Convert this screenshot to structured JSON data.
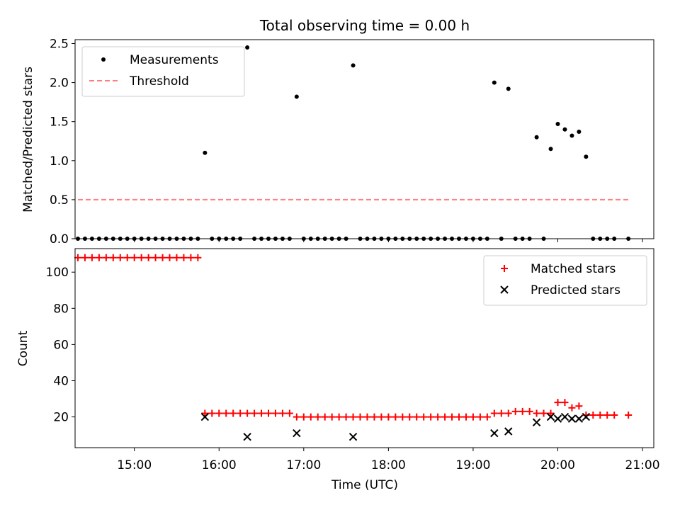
{
  "chart_data": [
    {
      "type": "scatter",
      "title": "Total observing time = 0.00 h",
      "xlabel": "",
      "ylabel": "Matched/Predicted stars",
      "xlim": [
        "14:18",
        "21:08"
      ],
      "ylim": [
        0,
        2.55
      ],
      "yticks": [
        0.0,
        0.5,
        1.0,
        1.5,
        2.0,
        2.5
      ],
      "ytick_labels": [
        "0.0",
        "0.5",
        "1.0",
        "1.5",
        "2.0",
        "2.5"
      ],
      "legend": "top-left",
      "series": [
        {
          "name": "Measurements",
          "marker": "dot",
          "color": "#000000",
          "points": [
            [
              "14:20",
              0
            ],
            [
              "14:25",
              0
            ],
            [
              "14:30",
              0
            ],
            [
              "14:35",
              0
            ],
            [
              "14:40",
              0
            ],
            [
              "14:45",
              0
            ],
            [
              "14:50",
              0
            ],
            [
              "14:55",
              0
            ],
            [
              "15:00",
              0
            ],
            [
              "15:05",
              0
            ],
            [
              "15:10",
              0
            ],
            [
              "15:15",
              0
            ],
            [
              "15:20",
              0
            ],
            [
              "15:25",
              0
            ],
            [
              "15:30",
              0
            ],
            [
              "15:35",
              0
            ],
            [
              "15:40",
              0
            ],
            [
              "15:45",
              0
            ],
            [
              "15:50",
              1.1
            ],
            [
              "15:55",
              0
            ],
            [
              "16:00",
              0
            ],
            [
              "16:05",
              0
            ],
            [
              "16:10",
              0
            ],
            [
              "16:15",
              0
            ],
            [
              "16:20",
              2.45
            ],
            [
              "16:25",
              0
            ],
            [
              "16:30",
              0
            ],
            [
              "16:35",
              0
            ],
            [
              "16:40",
              0
            ],
            [
              "16:45",
              0
            ],
            [
              "16:50",
              0
            ],
            [
              "16:55",
              1.82
            ],
            [
              "17:00",
              0
            ],
            [
              "17:05",
              0
            ],
            [
              "17:10",
              0
            ],
            [
              "17:15",
              0
            ],
            [
              "17:20",
              0
            ],
            [
              "17:25",
              0
            ],
            [
              "17:30",
              0
            ],
            [
              "17:35",
              2.22
            ],
            [
              "17:40",
              0
            ],
            [
              "17:45",
              0
            ],
            [
              "17:50",
              0
            ],
            [
              "17:55",
              0
            ],
            [
              "18:00",
              0
            ],
            [
              "18:05",
              0
            ],
            [
              "18:10",
              0
            ],
            [
              "18:15",
              0
            ],
            [
              "18:20",
              0
            ],
            [
              "18:25",
              0
            ],
            [
              "18:30",
              0
            ],
            [
              "18:35",
              0
            ],
            [
              "18:40",
              0
            ],
            [
              "18:45",
              0
            ],
            [
              "18:50",
              0
            ],
            [
              "18:55",
              0
            ],
            [
              "19:00",
              0
            ],
            [
              "19:05",
              0
            ],
            [
              "19:10",
              0
            ],
            [
              "19:15",
              2.0
            ],
            [
              "19:20",
              0
            ],
            [
              "19:25",
              1.92
            ],
            [
              "19:30",
              0
            ],
            [
              "19:35",
              0
            ],
            [
              "19:40",
              0
            ],
            [
              "19:45",
              1.3
            ],
            [
              "19:50",
              0
            ],
            [
              "19:55",
              1.15
            ],
            [
              "20:00",
              1.47
            ],
            [
              "20:05",
              1.4
            ],
            [
              "20:10",
              1.32
            ],
            [
              "20:15",
              1.37
            ],
            [
              "20:20",
              1.05
            ],
            [
              "20:25",
              0
            ],
            [
              "20:30",
              0
            ],
            [
              "20:35",
              0
            ],
            [
              "20:40",
              0
            ],
            [
              "20:50",
              0
            ]
          ]
        },
        {
          "name": "Threshold",
          "marker": "dashed-line",
          "color": "#ff7f7f",
          "points": [
            [
              "14:20",
              0.5
            ],
            [
              "20:50",
              0.5
            ]
          ]
        }
      ]
    },
    {
      "type": "scatter",
      "title": "",
      "xlabel": "Time (UTC)",
      "ylabel": "Count",
      "xlim": [
        "14:18",
        "21:08"
      ],
      "ylim": [
        3,
        113
      ],
      "yticks": [
        20,
        40,
        60,
        80,
        100
      ],
      "ytick_labels": [
        "20",
        "40",
        "60",
        "80",
        "100"
      ],
      "xticks": [
        "15:00",
        "16:00",
        "17:00",
        "18:00",
        "19:00",
        "20:00",
        "21:00"
      ],
      "legend": "top-right",
      "series": [
        {
          "name": "Matched stars",
          "marker": "plus",
          "color": "#ff0000",
          "points": [
            [
              "14:20",
              108
            ],
            [
              "14:25",
              108
            ],
            [
              "14:30",
              108
            ],
            [
              "14:35",
              108
            ],
            [
              "14:40",
              108
            ],
            [
              "14:45",
              108
            ],
            [
              "14:50",
              108
            ],
            [
              "14:55",
              108
            ],
            [
              "15:00",
              108
            ],
            [
              "15:05",
              108
            ],
            [
              "15:10",
              108
            ],
            [
              "15:15",
              108
            ],
            [
              "15:20",
              108
            ],
            [
              "15:25",
              108
            ],
            [
              "15:30",
              108
            ],
            [
              "15:35",
              108
            ],
            [
              "15:40",
              108
            ],
            [
              "15:45",
              108
            ],
            [
              "15:50",
              22
            ],
            [
              "15:55",
              22
            ],
            [
              "16:00",
              22
            ],
            [
              "16:05",
              22
            ],
            [
              "16:10",
              22
            ],
            [
              "16:15",
              22
            ],
            [
              "16:20",
              22
            ],
            [
              "16:25",
              22
            ],
            [
              "16:30",
              22
            ],
            [
              "16:35",
              22
            ],
            [
              "16:40",
              22
            ],
            [
              "16:45",
              22
            ],
            [
              "16:50",
              22
            ],
            [
              "16:55",
              20
            ],
            [
              "17:00",
              20
            ],
            [
              "17:05",
              20
            ],
            [
              "17:10",
              20
            ],
            [
              "17:15",
              20
            ],
            [
              "17:20",
              20
            ],
            [
              "17:25",
              20
            ],
            [
              "17:30",
              20
            ],
            [
              "17:35",
              20
            ],
            [
              "17:40",
              20
            ],
            [
              "17:45",
              20
            ],
            [
              "17:50",
              20
            ],
            [
              "17:55",
              20
            ],
            [
              "18:00",
              20
            ],
            [
              "18:05",
              20
            ],
            [
              "18:10",
              20
            ],
            [
              "18:15",
              20
            ],
            [
              "18:20",
              20
            ],
            [
              "18:25",
              20
            ],
            [
              "18:30",
              20
            ],
            [
              "18:35",
              20
            ],
            [
              "18:40",
              20
            ],
            [
              "18:45",
              20
            ],
            [
              "18:50",
              20
            ],
            [
              "18:55",
              20
            ],
            [
              "19:00",
              20
            ],
            [
              "19:05",
              20
            ],
            [
              "19:10",
              20
            ],
            [
              "19:15",
              22
            ],
            [
              "19:20",
              22
            ],
            [
              "19:25",
              22
            ],
            [
              "19:30",
              23
            ],
            [
              "19:35",
              23
            ],
            [
              "19:40",
              23
            ],
            [
              "19:45",
              22
            ],
            [
              "19:50",
              22
            ],
            [
              "19:55",
              22
            ],
            [
              "20:00",
              28
            ],
            [
              "20:05",
              28
            ],
            [
              "20:10",
              25
            ],
            [
              "20:15",
              26
            ],
            [
              "20:20",
              21
            ],
            [
              "20:25",
              21
            ],
            [
              "20:30",
              21
            ],
            [
              "20:35",
              21
            ],
            [
              "20:40",
              21
            ],
            [
              "20:50",
              21
            ]
          ]
        },
        {
          "name": "Predicted stars",
          "marker": "x",
          "color": "#000000",
          "points": [
            [
              "15:50",
              20
            ],
            [
              "16:20",
              9
            ],
            [
              "16:55",
              11
            ],
            [
              "17:35",
              9
            ],
            [
              "19:15",
              11
            ],
            [
              "19:25",
              12
            ],
            [
              "19:45",
              17
            ],
            [
              "19:55",
              20
            ],
            [
              "20:00",
              19
            ],
            [
              "20:05",
              20
            ],
            [
              "20:10",
              19
            ],
            [
              "20:15",
              19
            ],
            [
              "20:20",
              20
            ]
          ]
        }
      ]
    }
  ]
}
